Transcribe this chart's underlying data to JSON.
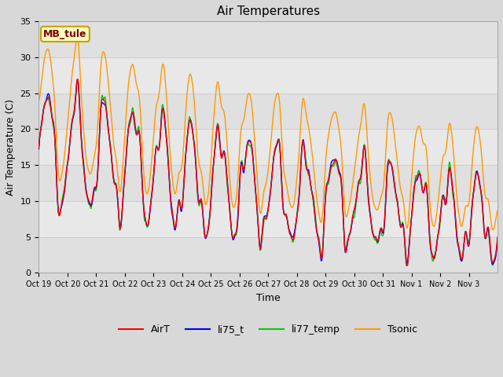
{
  "title": "Air Temperatures",
  "xlabel": "Time",
  "ylabel": "Air Temperature (C)",
  "ylim": [
    0,
    35
  ],
  "yticks": [
    0,
    5,
    10,
    15,
    20,
    25,
    30,
    35
  ],
  "annotation_text": "MB_tule",
  "annotation_bg": "#ffffc0",
  "annotation_border": "#c8a000",
  "annotation_text_color": "#800000",
  "line_colors": {
    "AirT": "#ff0000",
    "li75_t": "#0000ff",
    "li77_temp": "#00cc00",
    "Tsonic": "#ff9900"
  },
  "legend_labels": [
    "AirT",
    "li75_t",
    "li77_temp",
    "Tsonic"
  ],
  "grid_color": "#d0d0d0",
  "plot_bg": "#e8e8e8",
  "xtick_labels": [
    "Oct 19",
    "Oct 20",
    "Oct 21",
    "Oct 22",
    "Oct 23",
    "Oct 24",
    "Oct 25",
    "Oct 26",
    "Oct 27",
    "Oct 28",
    "Oct 29",
    "Oct 30",
    "Oct 31",
    "Nov 1",
    "Nov 2",
    "Nov 3"
  ],
  "num_days": 16,
  "points_per_day": 96,
  "figwidth": 6.4,
  "figheight": 4.8,
  "dpi": 100
}
